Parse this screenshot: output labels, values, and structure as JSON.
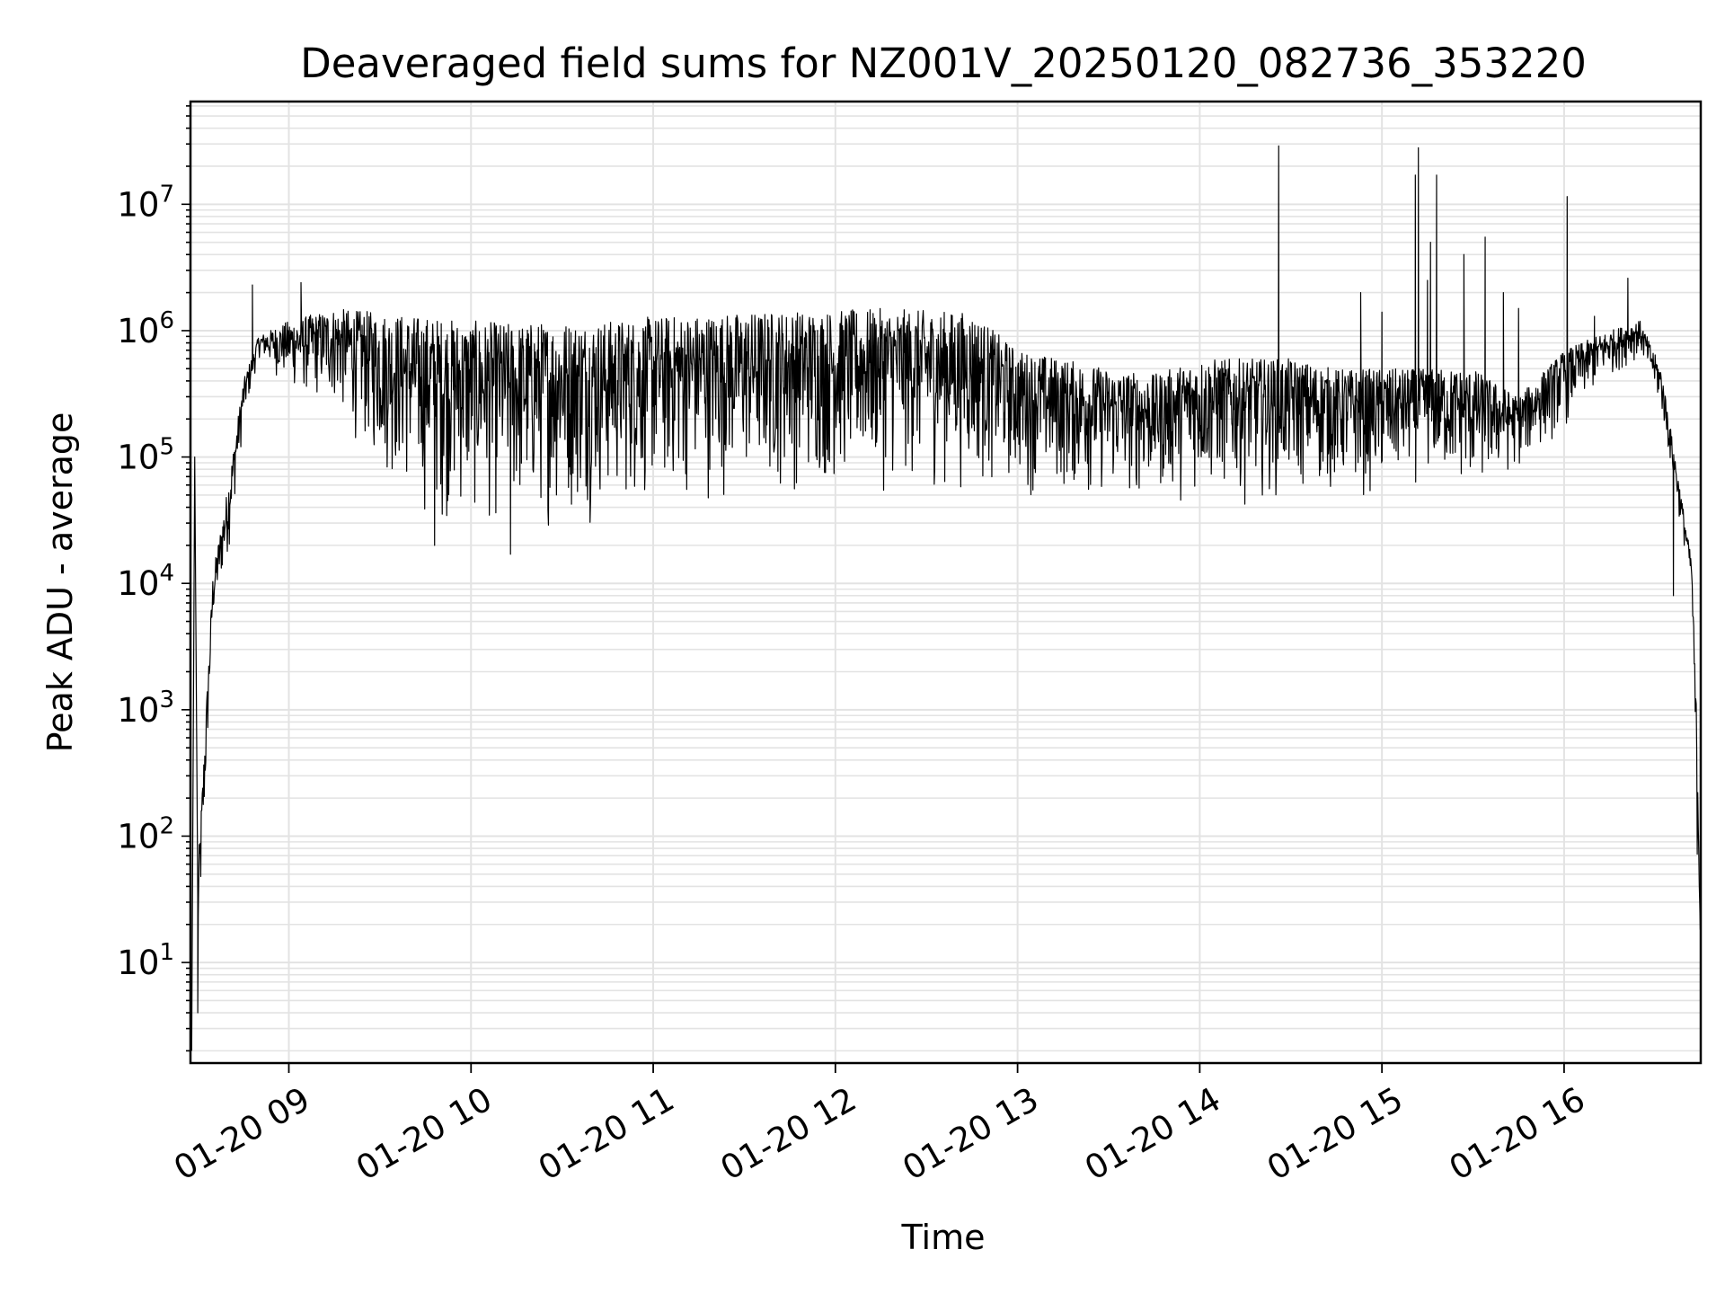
{
  "chart_data": {
    "type": "line",
    "title": "Deaveraged field sums for NZ001V_20250120_082736_353220",
    "xlabel": "Time",
    "ylabel": "Peak ADU - average",
    "yscale": "log",
    "ylim": [
      1.6,
      65000000
    ],
    "xlim": [
      "2025-01-20 08:27:36",
      "2025-01-20 16:45:00"
    ],
    "grid": true,
    "color": "#000000",
    "grid_color": "#e3e3e3",
    "x_ticks": [
      {
        "value": "2025-01-20 09:00",
        "label": "01-20 09"
      },
      {
        "value": "2025-01-20 10:00",
        "label": "01-20 10"
      },
      {
        "value": "2025-01-20 11:00",
        "label": "01-20 11"
      },
      {
        "value": "2025-01-20 12:00",
        "label": "01-20 12"
      },
      {
        "value": "2025-01-20 13:00",
        "label": "01-20 13"
      },
      {
        "value": "2025-01-20 14:00",
        "label": "01-20 14"
      },
      {
        "value": "2025-01-20 15:00",
        "label": "01-20 15"
      },
      {
        "value": "2025-01-20 16:00",
        "label": "01-20 16"
      }
    ],
    "y_ticks": [
      {
        "value": 10,
        "base": "10",
        "exp": "1"
      },
      {
        "value": 100,
        "base": "10",
        "exp": "2"
      },
      {
        "value": 1000,
        "base": "10",
        "exp": "3"
      },
      {
        "value": 10000,
        "base": "10",
        "exp": "4"
      },
      {
        "value": 100000,
        "base": "10",
        "exp": "5"
      },
      {
        "value": 1000000,
        "base": "10",
        "exp": "6"
      },
      {
        "value": 10000000,
        "base": "10",
        "exp": "7"
      }
    ],
    "envelope": [
      {
        "t": "2025-01-20 08:30",
        "lo": 5,
        "hi": 50
      },
      {
        "t": "2025-01-20 08:35",
        "lo": 4000,
        "hi": 12000
      },
      {
        "t": "2025-01-20 08:40",
        "lo": 15000,
        "hi": 60000
      },
      {
        "t": "2025-01-20 08:45",
        "lo": 150000,
        "hi": 400000
      },
      {
        "t": "2025-01-20 08:50",
        "lo": 600000,
        "hi": 900000
      },
      {
        "t": "2025-01-20 09:00",
        "lo": 300000,
        "hi": 1200000
      },
      {
        "t": "2025-01-20 09:15",
        "lo": 200000,
        "hi": 1500000
      },
      {
        "t": "2025-01-20 09:30",
        "lo": 60000,
        "hi": 1400000
      },
      {
        "t": "2025-01-20 09:45",
        "lo": 25000,
        "hi": 1300000
      },
      {
        "t": "2025-01-20 10:00",
        "lo": 22000,
        "hi": 1200000
      },
      {
        "t": "2025-01-20 10:15",
        "lo": 20000,
        "hi": 1150000
      },
      {
        "t": "2025-01-20 10:30",
        "lo": 24000,
        "hi": 1200000
      },
      {
        "t": "2025-01-20 10:45",
        "lo": 28000,
        "hi": 1200000
      },
      {
        "t": "2025-01-20 11:00",
        "lo": 32000,
        "hi": 1300000
      },
      {
        "t": "2025-01-20 11:15",
        "lo": 38000,
        "hi": 1350000
      },
      {
        "t": "2025-01-20 11:30",
        "lo": 40000,
        "hi": 1400000
      },
      {
        "t": "2025-01-20 11:45",
        "lo": 42000,
        "hi": 1450000
      },
      {
        "t": "2025-01-20 12:00",
        "lo": 44000,
        "hi": 1450000
      },
      {
        "t": "2025-01-20 12:15",
        "lo": 45000,
        "hi": 1500000
      },
      {
        "t": "2025-01-20 12:30",
        "lo": 45000,
        "hi": 1450000
      },
      {
        "t": "2025-01-20 12:45",
        "lo": 45000,
        "hi": 1400000
      },
      {
        "t": "2025-01-20 13:00",
        "lo": 45000,
        "hi": 700000
      },
      {
        "t": "2025-01-20 13:15",
        "lo": 40000,
        "hi": 600000
      },
      {
        "t": "2025-01-20 13:30",
        "lo": 38000,
        "hi": 500000
      },
      {
        "t": "2025-01-20 13:45",
        "lo": 38000,
        "hi": 450000
      },
      {
        "t": "2025-01-20 14:00",
        "lo": 40000,
        "hi": 600000
      },
      {
        "t": "2025-01-20 14:15",
        "lo": 40000,
        "hi": 600000
      },
      {
        "t": "2025-01-20 14:30",
        "lo": 42000,
        "hi": 600000
      },
      {
        "t": "2025-01-20 14:45",
        "lo": 42000,
        "hi": 500000
      },
      {
        "t": "2025-01-20 15:00",
        "lo": 40000,
        "hi": 500000
      },
      {
        "t": "2025-01-20 15:15",
        "lo": 60000,
        "hi": 500000
      },
      {
        "t": "2025-01-20 15:30",
        "lo": 40000,
        "hi": 500000
      },
      {
        "t": "2025-01-20 15:45",
        "lo": 70000,
        "hi": 300000
      },
      {
        "t": "2025-01-20 16:00",
        "lo": 150000,
        "hi": 700000
      },
      {
        "t": "2025-01-20 16:15",
        "lo": 400000,
        "hi": 1000000
      },
      {
        "t": "2025-01-20 16:25",
        "lo": 600000,
        "hi": 1200000
      },
      {
        "t": "2025-01-20 16:32",
        "lo": 200000,
        "hi": 500000
      },
      {
        "t": "2025-01-20 16:38",
        "lo": 30000,
        "hi": 60000
      },
      {
        "t": "2025-01-20 16:42",
        "lo": 8000,
        "hi": 15000
      },
      {
        "t": "2025-01-20 16:45",
        "lo": 2,
        "hi": 100
      }
    ],
    "spikes": [
      {
        "t": "2025-01-20 08:28",
        "v": 2
      },
      {
        "t": "2025-01-20 08:29",
        "v": 100000
      },
      {
        "t": "2025-01-20 08:30",
        "v": 4
      },
      {
        "t": "2025-01-20 08:48",
        "v": 2300000
      },
      {
        "t": "2025-01-20 09:04",
        "v": 2400000
      },
      {
        "t": "2025-01-20 09:48",
        "v": 20000
      },
      {
        "t": "2025-01-20 10:13",
        "v": 17000
      },
      {
        "t": "2025-01-20 14:26",
        "v": 29000000
      },
      {
        "t": "2025-01-20 14:53",
        "v": 2000000
      },
      {
        "t": "2025-01-20 15:00",
        "v": 1400000
      },
      {
        "t": "2025-01-20 15:11",
        "v": 17000000
      },
      {
        "t": "2025-01-20 15:12",
        "v": 28000000
      },
      {
        "t": "2025-01-20 15:15",
        "v": 2500000
      },
      {
        "t": "2025-01-20 15:16",
        "v": 5000000
      },
      {
        "t": "2025-01-20 15:18",
        "v": 17000000
      },
      {
        "t": "2025-01-20 15:27",
        "v": 4000000
      },
      {
        "t": "2025-01-20 15:34",
        "v": 5500000
      },
      {
        "t": "2025-01-20 15:40",
        "v": 2000000
      },
      {
        "t": "2025-01-20 15:45",
        "v": 1500000
      },
      {
        "t": "2025-01-20 16:01",
        "v": 11500000
      },
      {
        "t": "2025-01-20 16:10",
        "v": 1300000
      },
      {
        "t": "2025-01-20 16:21",
        "v": 2600000
      },
      {
        "t": "2025-01-20 16:36",
        "v": 8000
      }
    ]
  }
}
